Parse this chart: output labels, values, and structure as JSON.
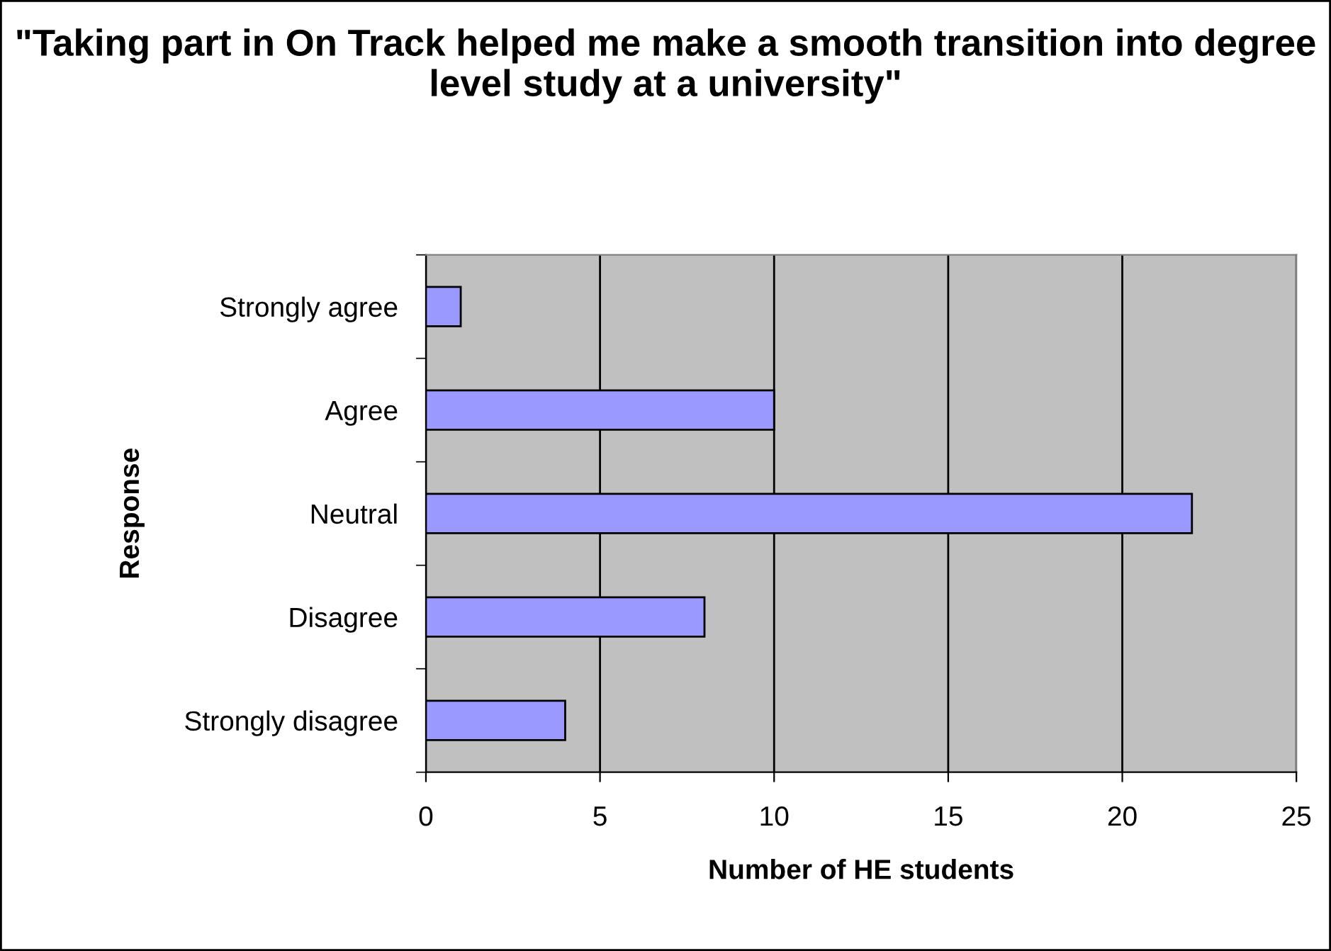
{
  "chart_data": {
    "type": "bar",
    "orientation": "horizontal",
    "title": "\"Taking part in On Track helped me make a smooth transition into degree level study at a university\"",
    "xlabel": "Number of HE students",
    "ylabel": "Response",
    "categories": [
      "Strongly agree",
      "Agree",
      "Neutral",
      "Disagree",
      "Strongly disagree"
    ],
    "values": [
      1,
      10,
      22,
      8,
      4
    ],
    "color": "#9999ff",
    "xlim": [
      0,
      25
    ],
    "xticks": [
      0,
      5,
      10,
      15,
      20,
      25
    ],
    "grid": "x",
    "legend": false
  }
}
